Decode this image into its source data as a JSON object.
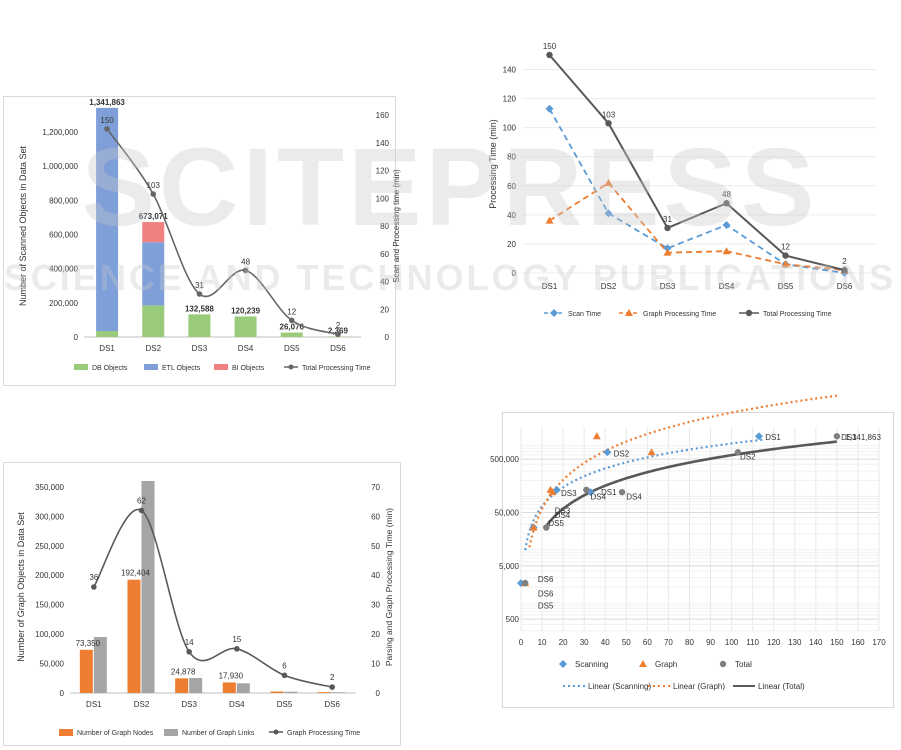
{
  "watermark": {
    "brand": "SCITEPRESS",
    "tagline": "SCIENCE AND TECHNOLOGY PUBLICATIONS"
  },
  "chart_data": [
    {
      "type": "bar",
      "stacked": true,
      "categories": [
        "DS1",
        "DS2",
        "DS3",
        "DS4",
        "DS5",
        "DS6"
      ],
      "series": [
        {
          "name": "DB Objects",
          "color": "#9acb7a",
          "values": [
            35000,
            185000,
            132588,
            120239,
            26076,
            2369
          ]
        },
        {
          "name": "ETL Objects",
          "color": "#7f9fd9",
          "values": [
            1306863,
            370000,
            0,
            0,
            0,
            0
          ]
        },
        {
          "name": "BI Objects",
          "color": "#f08080",
          "values": [
            0,
            118071,
            0,
            0,
            0,
            0
          ]
        }
      ],
      "line": {
        "name": "Total Processing Time",
        "color": "#666666",
        "values": [
          150,
          103,
          31,
          48,
          12,
          2
        ]
      },
      "bar_labels": [
        "1,341,863",
        "673,071",
        "132,588",
        "120,239",
        "26,076",
        "2,369"
      ],
      "line_labels": [
        "150",
        "103",
        "31",
        "48",
        "12",
        "2"
      ],
      "ylabel": "Number of Scanned Objects in Data Set",
      "y2label": "Scan and Processing time (min)",
      "ylim": [
        0,
        1300000
      ],
      "y_ticks": [
        "0",
        "200,000",
        "400,000",
        "600,000",
        "800,000",
        "1,000,000",
        "1,200,000"
      ],
      "y2lim": [
        0,
        160
      ],
      "y2_ticks": [
        "0",
        "20",
        "40",
        "60",
        "80",
        "100",
        "120",
        "140",
        "160"
      ],
      "legend": "bottom"
    },
    {
      "type": "line",
      "categories": [
        "DS1",
        "DS2",
        "DS3",
        "DS4",
        "DS5",
        "DS6"
      ],
      "series": [
        {
          "name": "Scan Time",
          "color": "#5b9bd5",
          "dash": true,
          "values": [
            113,
            41,
            17,
            33,
            6,
            0
          ]
        },
        {
          "name": "Graph Processing Time",
          "color": "#ed7d31",
          "dash": true,
          "values": [
            36,
            62,
            14,
            15,
            6,
            2
          ]
        },
        {
          "name": "Total Processing Time",
          "color": "#595959",
          "dash": false,
          "values": [
            150,
            103,
            31,
            48,
            12,
            2
          ]
        }
      ],
      "total_labels": [
        "150",
        "103",
        "31",
        "48",
        "12",
        "2"
      ],
      "ylabel": "Processing Time (min)",
      "ylim": [
        0,
        150
      ],
      "y_ticks": [
        "0",
        "20",
        "40",
        "60",
        "80",
        "100",
        "120",
        "140"
      ],
      "legend": "bottom"
    },
    {
      "type": "bar",
      "categories": [
        "DS1",
        "DS2",
        "DS3",
        "DS4",
        "DS5",
        "DS6"
      ],
      "series": [
        {
          "name": "Number of Graph Nodes",
          "color": "#ed7d31",
          "values": [
            73350,
            192404,
            24878,
            17930,
            2500,
            1500
          ]
        },
        {
          "name": "Number of Graph Links",
          "color": "#a5a5a5",
          "values": [
            95000,
            360000,
            25500,
            16500,
            2200,
            1200
          ]
        }
      ],
      "line": {
        "name": "Graph Processing Time",
        "color": "#595959",
        "values": [
          36,
          62,
          14,
          15,
          6,
          2
        ]
      },
      "bar_labels": [
        "73,350",
        "192,404",
        "24,878",
        "17,930",
        "",
        ""
      ],
      "line_labels": [
        "36",
        "62",
        "14",
        "15",
        "6",
        "2"
      ],
      "ylabel": "Number of Graph Objects in Data Set",
      "y2label": "Parsing and Graph Processing Time (min)",
      "ylim": [
        0,
        360000
      ],
      "y_ticks": [
        "0",
        "50,000",
        "100,000",
        "150,000",
        "200,000",
        "250,000",
        "300,000",
        "350,000"
      ],
      "y2lim": [
        0,
        72
      ],
      "y2_ticks": [
        "0",
        "10",
        "20",
        "30",
        "40",
        "50",
        "60",
        "70"
      ],
      "legend": "bottom"
    },
    {
      "type": "scatter",
      "xlim": [
        0,
        170
      ],
      "x_ticks": [
        "0",
        "10",
        "20",
        "30",
        "40",
        "50",
        "60",
        "70",
        "80",
        "90",
        "100",
        "110",
        "120",
        "130",
        "140",
        "150",
        "160",
        "170"
      ],
      "ylim_log": [
        300,
        2000000
      ],
      "y_ticks": [
        "500",
        "5,000",
        "50,000",
        "500,000"
      ],
      "y_tick_values": [
        500,
        5000,
        50000,
        500000
      ],
      "series": [
        {
          "name": "Scanning",
          "color": "#5b9bd5",
          "marker": "diamond",
          "x": [
            113,
            41,
            17,
            33,
            6,
            0
          ],
          "y": [
            1341863,
            673071,
            132588,
            120239,
            26076,
            2369
          ]
        },
        {
          "name": "Graph",
          "color": "#ed7d31",
          "marker": "triangle",
          "x": [
            36,
            62,
            14,
            15,
            6,
            2
          ],
          "y": [
            1341863,
            673071,
            132588,
            120239,
            26076,
            2369
          ]
        },
        {
          "name": "Total",
          "color": "#7f7f7f",
          "marker": "circle",
          "x": [
            150,
            103,
            31,
            48,
            12,
            2
          ],
          "y": [
            1341863,
            673071,
            132588,
            120239,
            26076,
            2369
          ]
        }
      ],
      "labels": [
        {
          "text": "DS1",
          "x": 116,
          "y": 1300000
        },
        {
          "text": "DS2",
          "x": 44,
          "y": 640000
        },
        {
          "text": "DS3",
          "x": 19,
          "y": 115000
        },
        {
          "text": "DS4",
          "x": 33,
          "y": 100000
        },
        {
          "text": "DS5",
          "x": 8,
          "y": 900
        },
        {
          "text": "DS6",
          "x": 8,
          "y": 2800
        },
        {
          "text": "DS6",
          "x": 8,
          "y": 1500
        },
        {
          "text": "DS1",
          "x": 38,
          "y": 120000
        },
        {
          "text": "DS4",
          "x": 50,
          "y": 100000
        },
        {
          "text": "DS2",
          "x": 104,
          "y": 560000
        },
        {
          "text": "DS3",
          "x": 16,
          "y": 55000
        },
        {
          "text": "DS4",
          "x": 16,
          "y": 45000
        },
        {
          "text": "DS5",
          "x": 13,
          "y": 32000
        },
        {
          "text": "DS1",
          "x": 152,
          "y": 1300000
        },
        {
          "text": "1,341,863",
          "x": 154,
          "y": 1300000
        }
      ],
      "trendlines": [
        {
          "name": "Linear  (Scanning)",
          "color": "#5b9bd5",
          "dotted": true
        },
        {
          "name": "Linear  (Graph)",
          "color": "#ed7d31",
          "dotted": true
        },
        {
          "name": "Linear  (Total)",
          "color": "#595959",
          "dotted": false
        }
      ],
      "legend": "bottom"
    }
  ]
}
